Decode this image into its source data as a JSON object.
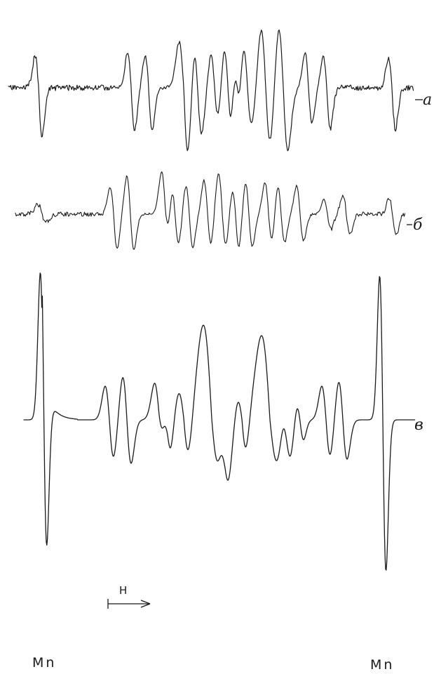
{
  "figure": {
    "trace_labels": {
      "a": "а",
      "b": "б",
      "c": "в"
    },
    "marker_labels": {
      "left": "Mn",
      "right": "Mn"
    },
    "field_label": "H"
  },
  "colors": {
    "ink": "#1a1a1a",
    "background": "#ffffff"
  }
}
